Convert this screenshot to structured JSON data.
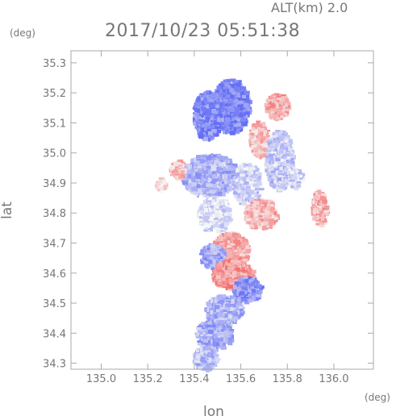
{
  "header": {
    "altitude_label": "ALT(km) 2.0",
    "timestamp": "2017/10/23 05:51:38"
  },
  "axes": {
    "x_unit": "(deg)",
    "y_unit": "(deg)",
    "x_label": "lon",
    "y_label": "lat"
  },
  "colors": {
    "frame": "#aaaaaa",
    "text": "#777777",
    "negative": "#6b6ff0",
    "positive": "#f06060"
  },
  "chart_data": {
    "type": "heatmap",
    "title": "2017/10/23 05:51:38",
    "subtitle": "ALT(km) 2.0",
    "xlabel": "lon",
    "ylabel": "lat",
    "xunit": "(deg)",
    "yunit": "(deg)",
    "xlim": [
      134.87,
      136.17
    ],
    "ylim": [
      34.28,
      35.34
    ],
    "x_ticks": [
      135.0,
      135.2,
      135.4,
      135.6,
      135.8,
      136.0
    ],
    "x_tick_labels": [
      "135.0",
      "135.2",
      "135.4",
      "135.6",
      "135.8",
      "136.0"
    ],
    "y_ticks": [
      34.3,
      34.4,
      34.5,
      34.6,
      34.7,
      34.8,
      34.9,
      35.0,
      35.1,
      35.2,
      35.3
    ],
    "y_tick_labels": [
      "34.3",
      "34.4",
      "34.5",
      "34.6",
      "34.7",
      "34.8",
      "34.9",
      "35.0",
      "35.1",
      "35.2",
      "35.3"
    ],
    "grid": false,
    "clusters": [
      {
        "lon": 135.55,
        "lat": 35.16,
        "rlon": 0.08,
        "rlat": 0.09,
        "value": -0.85
      },
      {
        "lon": 135.45,
        "lat": 35.13,
        "rlon": 0.06,
        "rlat": 0.08,
        "value": -0.8
      },
      {
        "lon": 135.67,
        "lat": 35.05,
        "rlon": 0.04,
        "rlat": 0.06,
        "value": 0.4
      },
      {
        "lon": 135.76,
        "lat": 34.98,
        "rlon": 0.06,
        "rlat": 0.1,
        "value": -0.35
      },
      {
        "lon": 135.75,
        "lat": 35.16,
        "rlon": 0.05,
        "rlat": 0.04,
        "value": 0.5
      },
      {
        "lon": 135.46,
        "lat": 34.93,
        "rlon": 0.12,
        "rlat": 0.07,
        "value": -0.5
      },
      {
        "lon": 135.62,
        "lat": 34.9,
        "rlon": 0.06,
        "rlat": 0.07,
        "value": -0.3
      },
      {
        "lon": 135.68,
        "lat": 34.8,
        "rlon": 0.07,
        "rlat": 0.05,
        "value": 0.45
      },
      {
        "lon": 135.48,
        "lat": 34.8,
        "rlon": 0.07,
        "rlat": 0.06,
        "value": -0.2
      },
      {
        "lon": 135.55,
        "lat": 34.68,
        "rlon": 0.08,
        "rlat": 0.06,
        "value": 0.5
      },
      {
        "lon": 135.47,
        "lat": 34.66,
        "rlon": 0.05,
        "rlat": 0.04,
        "value": -0.6
      },
      {
        "lon": 135.56,
        "lat": 34.6,
        "rlon": 0.09,
        "rlat": 0.05,
        "value": 0.6
      },
      {
        "lon": 135.62,
        "lat": 34.55,
        "rlon": 0.06,
        "rlat": 0.04,
        "value": -0.7
      },
      {
        "lon": 135.52,
        "lat": 34.48,
        "rlon": 0.08,
        "rlat": 0.05,
        "value": -0.5
      },
      {
        "lon": 135.48,
        "lat": 34.4,
        "rlon": 0.08,
        "rlat": 0.05,
        "value": -0.55
      },
      {
        "lon": 135.44,
        "lat": 34.32,
        "rlon": 0.05,
        "rlat": 0.04,
        "value": -0.45
      },
      {
        "lon": 135.93,
        "lat": 34.82,
        "rlon": 0.03,
        "rlat": 0.06,
        "value": 0.45
      },
      {
        "lon": 135.83,
        "lat": 34.92,
        "rlon": 0.03,
        "rlat": 0.03,
        "value": -0.3
      },
      {
        "lon": 135.32,
        "lat": 34.95,
        "rlon": 0.03,
        "rlat": 0.03,
        "value": 0.35
      },
      {
        "lon": 135.25,
        "lat": 34.9,
        "rlon": 0.02,
        "rlat": 0.02,
        "value": 0.3
      }
    ]
  }
}
